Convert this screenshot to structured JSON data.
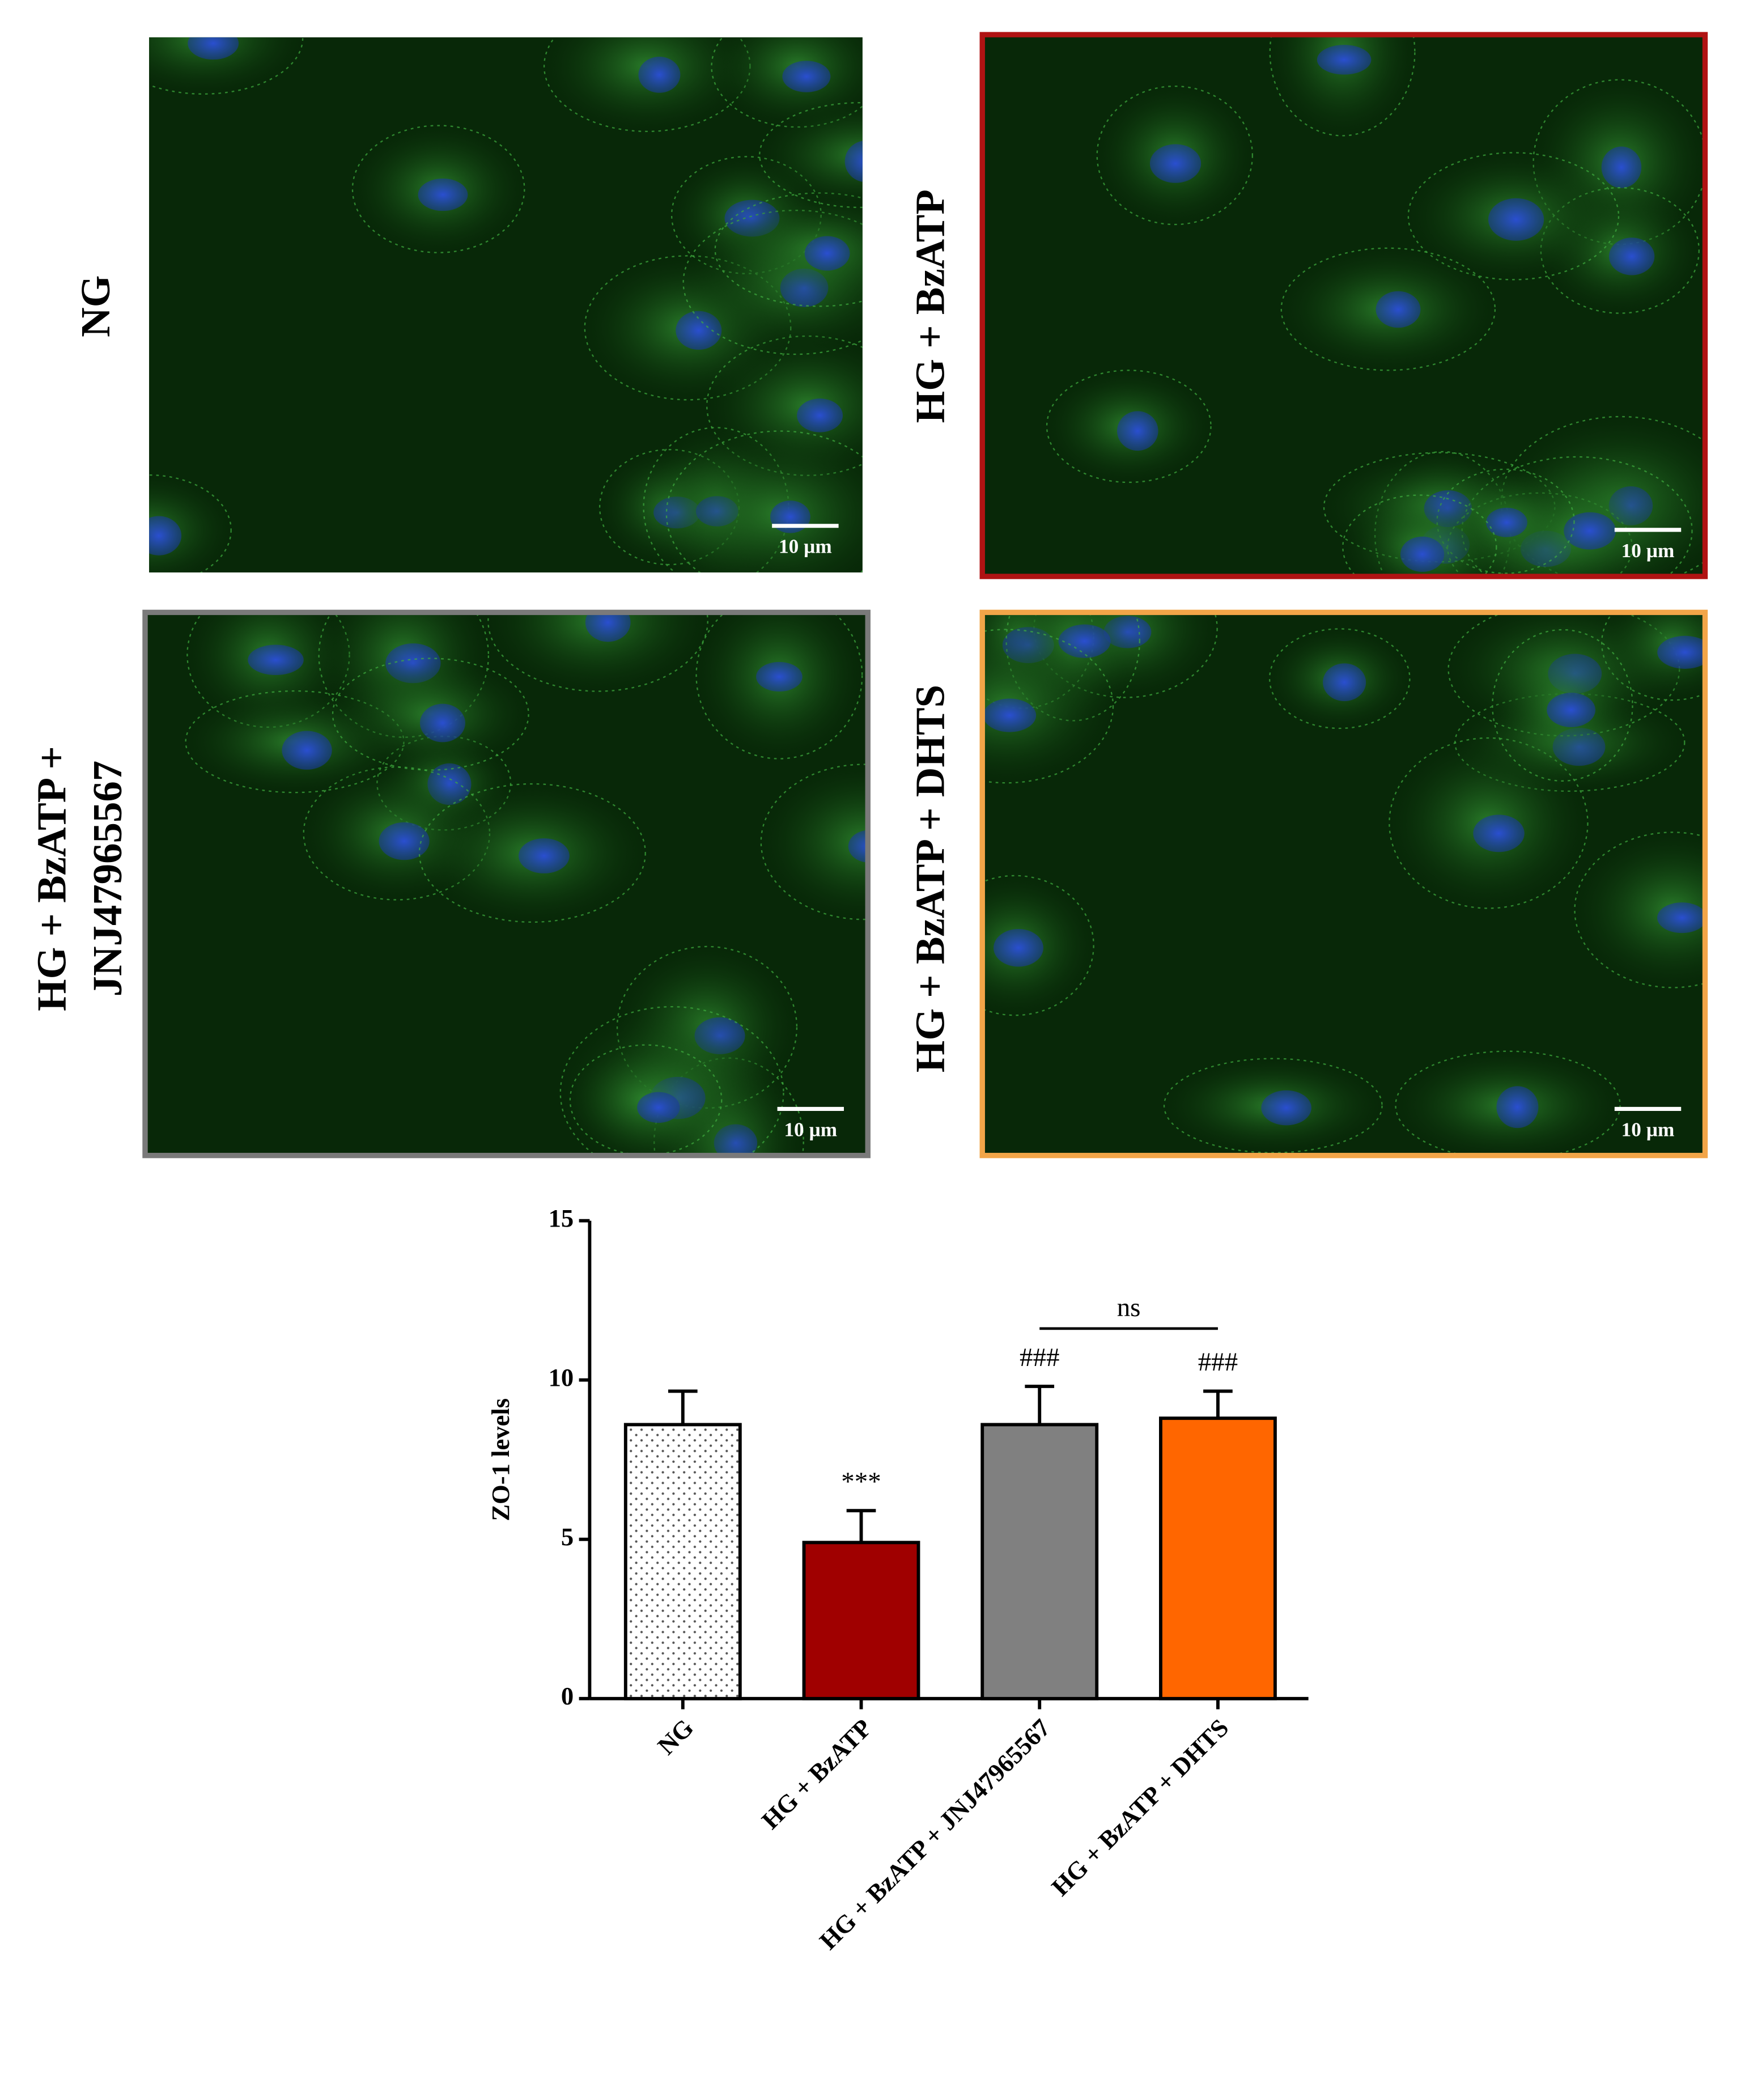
{
  "panels": [
    {
      "label_lines": [
        "NG"
      ],
      "scale_bar": "10 µm",
      "border": null
    },
    {
      "label_lines": [
        "HG + BzATP"
      ],
      "scale_bar": "10 µm",
      "border": "#b01313"
    },
    {
      "label_lines": [
        "HG + BzATP +",
        "JNJ47965567"
      ],
      "scale_bar": "10 µm",
      "border": "#7a7a7a"
    },
    {
      "label_lines": [
        "HG + BzATP + DHTS"
      ],
      "scale_bar": "10 µm",
      "border": "#f2a548"
    }
  ],
  "chart_data": {
    "type": "bar",
    "ylabel": "ZO-1 levels",
    "categories": [
      "NG",
      "HG + BzATP",
      "HG + BzATP + JNJ47965567",
      "HG + BzATP + DHTS"
    ],
    "values": [
      8.6,
      4.9,
      8.6,
      8.8
    ],
    "errors": [
      1.05,
      1.0,
      1.2,
      0.85
    ],
    "colors": [
      "#ffffff",
      "#a00000",
      "#808080",
      "#ff6600"
    ],
    "hatch": [
      "dots",
      null,
      null,
      null
    ],
    "value_annotations": [
      null,
      "***",
      "###",
      "###"
    ],
    "comparisons": [
      {
        "label": "ns",
        "pair": [
          2,
          3
        ]
      }
    ],
    "ylim": [
      0,
      15
    ],
    "yticks": [
      0,
      5,
      10,
      15
    ]
  }
}
